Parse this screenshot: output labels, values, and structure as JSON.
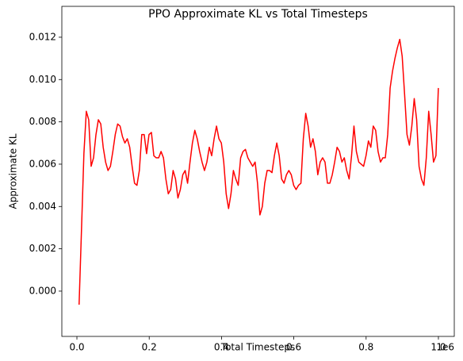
{
  "chart_data": {
    "type": "line",
    "title": "PPO Approximate KL vs Total Timesteps",
    "x_label": "Total Timesteps",
    "y_label": "Approximate KL",
    "x_offset_label": "1e6",
    "xlim": [
      -41700,
      1043900
    ],
    "ylim": [
      -0.00214,
      0.01346
    ],
    "xticks": [
      {
        "value": 0,
        "label": "0.0"
      },
      {
        "value": 200000,
        "label": "0.2"
      },
      {
        "value": 400000,
        "label": "0.4"
      },
      {
        "value": 600000,
        "label": "0.6"
      },
      {
        "value": 800000,
        "label": "0.8"
      },
      {
        "value": 1000000,
        "label": "1.0"
      }
    ],
    "yticks": [
      {
        "value": 0,
        "label": "0.000"
      },
      {
        "value": 0.002,
        "label": "0.002"
      },
      {
        "value": 0.004,
        "label": "0.004"
      },
      {
        "value": 0.006,
        "label": "0.006"
      },
      {
        "value": 0.008,
        "label": "0.008"
      },
      {
        "value": 0.01,
        "label": "0.010"
      },
      {
        "value": 0.012,
        "label": "0.012"
      }
    ],
    "grid": false,
    "x": [
      6000,
      12670,
      19340,
      26010,
      32680,
      39350,
      46020,
      52690,
      59360,
      66030,
      72700,
      79370,
      86040,
      92710,
      99380,
      106050,
      112720,
      119390,
      126060,
      132730,
      139400,
      146070,
      152740,
      159410,
      166080,
      172750,
      179420,
      186090,
      192760,
      199430,
      206100,
      212770,
      219440,
      226110,
      232780,
      239450,
      246120,
      252790,
      259460,
      266130,
      272800,
      279470,
      286140,
      292810,
      299480,
      306150,
      312820,
      319490,
      326160,
      332830,
      339500,
      346170,
      352840,
      359510,
      366180,
      372850,
      379520,
      386190,
      392860,
      399530,
      406200,
      412870,
      419540,
      426210,
      432880,
      439550,
      446220,
      452890,
      459560,
      466230,
      472900,
      479570,
      486240,
      492910,
      499580,
      506250,
      512920,
      519590,
      526260,
      532930,
      539600,
      546270,
      552940,
      559610,
      566280,
      572950,
      579620,
      586290,
      592960,
      599630,
      606300,
      612970,
      619640,
      626310,
      632980,
      639650,
      646320,
      652990,
      659660,
      666330,
      673000,
      679670,
      686340,
      693010,
      699680,
      706350,
      713020,
      719690,
      726360,
      733030,
      739700,
      746370,
      753040,
      759710,
      766380,
      773050,
      779720,
      786390,
      793060,
      799730,
      806400,
      813070,
      819740,
      826410,
      833080,
      839750,
      846420,
      853090,
      859760,
      866430,
      873100,
      879770,
      886440,
      893110,
      899780,
      906450,
      913120,
      919790,
      926460,
      933130,
      939800,
      946470,
      953140,
      959810,
      966480,
      973150,
      979820,
      986490,
      993160,
      999830
    ],
    "series": [
      {
        "color": "#ff0000",
        "values": [
          -0.00064,
          0.0029,
          0.0065,
          0.0085,
          0.0081,
          0.0059,
          0.0063,
          0.0074,
          0.0081,
          0.0079,
          0.0068,
          0.0061,
          0.0057,
          0.0059,
          0.0066,
          0.0074,
          0.0079,
          0.0078,
          0.0073,
          0.007,
          0.0072,
          0.0068,
          0.0059,
          0.0051,
          0.005,
          0.0057,
          0.0074,
          0.0074,
          0.0065,
          0.0074,
          0.0075,
          0.0064,
          0.0063,
          0.0063,
          0.0066,
          0.0063,
          0.0053,
          0.0046,
          0.0048,
          0.0057,
          0.0053,
          0.0044,
          0.0048,
          0.0055,
          0.0057,
          0.0051,
          0.0061,
          0.007,
          0.0076,
          0.0072,
          0.0066,
          0.0061,
          0.0057,
          0.0061,
          0.0068,
          0.0064,
          0.0072,
          0.0078,
          0.0072,
          0.007,
          0.0061,
          0.0046,
          0.0039,
          0.0046,
          0.0057,
          0.0053,
          0.005,
          0.0063,
          0.0066,
          0.0067,
          0.0063,
          0.0061,
          0.0059,
          0.0061,
          0.0051,
          0.0036,
          0.004,
          0.0051,
          0.0057,
          0.0057,
          0.0056,
          0.0064,
          0.007,
          0.0064,
          0.0053,
          0.0051,
          0.0055,
          0.0057,
          0.0055,
          0.005,
          0.0048,
          0.005,
          0.0051,
          0.0072,
          0.0084,
          0.0078,
          0.0068,
          0.0072,
          0.0066,
          0.0055,
          0.0061,
          0.0063,
          0.0061,
          0.0051,
          0.0051,
          0.0055,
          0.0061,
          0.0068,
          0.0066,
          0.0061,
          0.0063,
          0.0057,
          0.0053,
          0.0064,
          0.0078,
          0.0066,
          0.0061,
          0.006,
          0.0059,
          0.0064,
          0.0071,
          0.0068,
          0.0078,
          0.0076,
          0.0066,
          0.0061,
          0.0063,
          0.0063,
          0.0074,
          0.0096,
          0.0104,
          0.011,
          0.0115,
          0.0119,
          0.0111,
          0.0093,
          0.0074,
          0.0069,
          0.0078,
          0.0091,
          0.0081,
          0.0059,
          0.0053,
          0.005,
          0.0063,
          0.0085,
          0.0074,
          0.0061,
          0.0064,
          0.0096
        ]
      }
    ]
  }
}
